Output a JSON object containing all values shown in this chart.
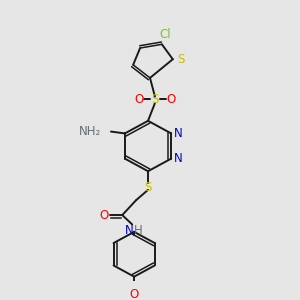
{
  "bg_color": "#e6e6e6",
  "bond_color": "#1a1a1a",
  "colors": {
    "Cl": "#7cc420",
    "S": "#c8c000",
    "O": "#ff0000",
    "N": "#0000cc",
    "NH": "#607070",
    "C": "#1a1a1a"
  },
  "lw": 1.4,
  "lw2": 1.1,
  "fs": 8.5
}
